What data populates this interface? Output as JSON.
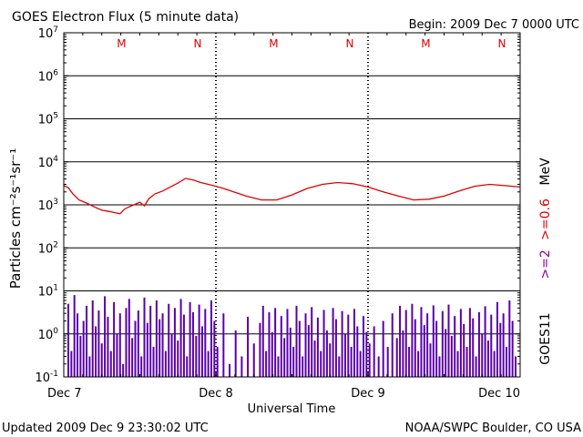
{
  "header": {
    "title": "GOES Electron Flux (5 minute data)",
    "begin": "Begin: 2009 Dec 7 0000 UTC"
  },
  "footer": {
    "updated": "Updated 2009 Dec  9 23:30:02 UTC",
    "credit": "NOAA/SWPC Boulder, CO USA"
  },
  "colors": {
    "flux_line": "#e00000",
    "hist_bars": "#5a00aa",
    "threshold": "#000000",
    "marker": "#e00000",
    "energy_label_red": "#e00000",
    "energy_label_purple": "#8b008b"
  },
  "chart_data": {
    "type": "line",
    "title": "GOES Electron Flux (5 minute data)",
    "xlabel": "Universal Time",
    "ylabel": "Particles cm⁻²s⁻¹sr⁻¹",
    "y_scale": "log",
    "ylim": [
      0.1,
      10000000
    ],
    "y_ticks": [
      {
        "value": 0.1,
        "base": "10",
        "exp": "-1"
      },
      {
        "value": 1,
        "base": "10",
        "exp": "0"
      },
      {
        "value": 10,
        "base": "10",
        "exp": "1"
      },
      {
        "value": 100,
        "base": "10",
        "exp": "2"
      },
      {
        "value": 1000,
        "base": "10",
        "exp": "3"
      },
      {
        "value": 10000,
        "base": "10",
        "exp": "4"
      },
      {
        "value": 100000,
        "base": "10",
        "exp": "5"
      },
      {
        "value": 1000000,
        "base": "10",
        "exp": "6"
      },
      {
        "value": 10000000,
        "base": "10",
        "exp": "7"
      }
    ],
    "x_unit": "day since 2009 Dec 7 0000 UTC",
    "xlim": [
      0,
      3
    ],
    "x_ticks": [
      {
        "value": 0,
        "label": "Dec 7"
      },
      {
        "value": 1,
        "label": "Dec 8"
      },
      {
        "value": 2,
        "label": "Dec 9"
      },
      {
        "value": 3,
        "label": "Dec 10"
      }
    ],
    "day_markers": [
      {
        "x": 0.38,
        "label": "M"
      },
      {
        "x": 0.88,
        "label": "N"
      },
      {
        "x": 1.38,
        "label": "M"
      },
      {
        "x": 1.88,
        "label": "N"
      },
      {
        "x": 2.38,
        "label": "M"
      },
      {
        "x": 2.88,
        "label": "N"
      }
    ],
    "threshold": {
      "value": 1000,
      "style": "dashed"
    },
    "series": [
      {
        "name": ">=2 >=0.6 MeV",
        "x": [
          0.0,
          0.03,
          0.06,
          0.1,
          0.15,
          0.2,
          0.25,
          0.3,
          0.34,
          0.37,
          0.4,
          0.43,
          0.46,
          0.5,
          0.53,
          0.56,
          0.6,
          0.65,
          0.7,
          0.75,
          0.8,
          0.85,
          0.9,
          0.95,
          1.0,
          1.05,
          1.1,
          1.2,
          1.3,
          1.4,
          1.5,
          1.6,
          1.7,
          1.8,
          1.9,
          2.0,
          2.1,
          2.2,
          2.3,
          2.4,
          2.5,
          2.6,
          2.7,
          2.8,
          2.9,
          3.0
        ],
        "y": [
          2800,
          2500,
          1800,
          1300,
          1100,
          900,
          750,
          700,
          650,
          620,
          800,
          900,
          1000,
          1150,
          950,
          1400,
          1800,
          2100,
          2600,
          3200,
          4100,
          3800,
          3300,
          3000,
          2700,
          2400,
          2100,
          1600,
          1300,
          1300,
          1700,
          2400,
          3000,
          3300,
          3100,
          2600,
          2000,
          1600,
          1300,
          1350,
          1600,
          2100,
          2700,
          3000,
          2800,
          2600
        ]
      }
    ],
    "histogram": {
      "name": "GOES11",
      "bars": [
        [
          0.03,
          5.0
        ],
        [
          0.05,
          0.4
        ],
        [
          0.07,
          8.0
        ],
        [
          0.09,
          3.0
        ],
        [
          0.11,
          0.9
        ],
        [
          0.13,
          2.0
        ],
        [
          0.15,
          4.5
        ],
        [
          0.17,
          0.3
        ],
        [
          0.19,
          6.0
        ],
        [
          0.21,
          1.5
        ],
        [
          0.23,
          3.5
        ],
        [
          0.25,
          0.6
        ],
        [
          0.27,
          7.5
        ],
        [
          0.29,
          2.5
        ],
        [
          0.31,
          0.4
        ],
        [
          0.33,
          5.5
        ],
        [
          0.35,
          1.0
        ],
        [
          0.37,
          3.0
        ],
        [
          0.39,
          0.2
        ],
        [
          0.41,
          4.0
        ],
        [
          0.43,
          6.5
        ],
        [
          0.45,
          0.8
        ],
        [
          0.47,
          2.0
        ],
        [
          0.49,
          3.5
        ],
        [
          0.51,
          0.3
        ],
        [
          0.53,
          7.0
        ],
        [
          0.55,
          1.8
        ],
        [
          0.57,
          4.5
        ],
        [
          0.59,
          0.5
        ],
        [
          0.61,
          6.0
        ],
        [
          0.63,
          2.2
        ],
        [
          0.65,
          3.0
        ],
        [
          0.67,
          0.4
        ],
        [
          0.69,
          5.0
        ],
        [
          0.71,
          1.0
        ],
        [
          0.73,
          4.0
        ],
        [
          0.75,
          0.7
        ],
        [
          0.77,
          6.5
        ],
        [
          0.79,
          2.8
        ],
        [
          0.81,
          0.3
        ],
        [
          0.83,
          5.5
        ],
        [
          0.85,
          3.2
        ],
        [
          0.87,
          0.9
        ],
        [
          0.89,
          4.8
        ],
        [
          0.91,
          1.5
        ],
        [
          0.93,
          3.8
        ],
        [
          0.95,
          0.4
        ],
        [
          0.97,
          6.0
        ],
        [
          0.99,
          2.0
        ],
        [
          1.01,
          0.5
        ],
        [
          1.05,
          3.0
        ],
        [
          1.09,
          0.2
        ],
        [
          1.13,
          1.2
        ],
        [
          1.17,
          0.3
        ],
        [
          1.21,
          2.5
        ],
        [
          1.25,
          0.6
        ],
        [
          1.29,
          1.8
        ],
        [
          1.31,
          4.5
        ],
        [
          1.33,
          0.4
        ],
        [
          1.35,
          3.2
        ],
        [
          1.37,
          1.1
        ],
        [
          1.39,
          4.0
        ],
        [
          1.41,
          0.3
        ],
        [
          1.43,
          2.6
        ],
        [
          1.45,
          0.8
        ],
        [
          1.47,
          3.8
        ],
        [
          1.49,
          1.4
        ],
        [
          1.51,
          0.5
        ],
        [
          1.53,
          4.5
        ],
        [
          1.55,
          2.0
        ],
        [
          1.57,
          0.3
        ],
        [
          1.59,
          3.0
        ],
        [
          1.61,
          1.6
        ],
        [
          1.63,
          4.2
        ],
        [
          1.65,
          0.7
        ],
        [
          1.67,
          2.4
        ],
        [
          1.69,
          0.4
        ],
        [
          1.71,
          3.6
        ],
        [
          1.73,
          1.2
        ],
        [
          1.75,
          0.6
        ],
        [
          1.77,
          4.0
        ],
        [
          1.79,
          2.2
        ],
        [
          1.81,
          0.3
        ],
        [
          1.83,
          3.4
        ],
        [
          1.85,
          1.0
        ],
        [
          1.87,
          2.8
        ],
        [
          1.89,
          0.5
        ],
        [
          1.91,
          3.8
        ],
        [
          1.93,
          1.5
        ],
        [
          1.95,
          0.4
        ],
        [
          1.97,
          2.6
        ],
        [
          1.99,
          1.1
        ],
        [
          2.01,
          0.6
        ],
        [
          2.04,
          1.5
        ],
        [
          2.07,
          0.3
        ],
        [
          2.1,
          2.0
        ],
        [
          2.13,
          0.5
        ],
        [
          2.16,
          3.0
        ],
        [
          2.19,
          0.8
        ],
        [
          2.21,
          4.5
        ],
        [
          2.23,
          1.2
        ],
        [
          2.25,
          3.6
        ],
        [
          2.27,
          0.5
        ],
        [
          2.29,
          5.0
        ],
        [
          2.31,
          2.2
        ],
        [
          2.33,
          0.4
        ],
        [
          2.35,
          4.2
        ],
        [
          2.37,
          1.6
        ],
        [
          2.39,
          3.0
        ],
        [
          2.41,
          0.6
        ],
        [
          2.43,
          4.6
        ],
        [
          2.45,
          2.0
        ],
        [
          2.47,
          0.3
        ],
        [
          2.49,
          3.4
        ],
        [
          2.51,
          1.3
        ],
        [
          2.53,
          4.8
        ],
        [
          2.55,
          0.9
        ],
        [
          2.57,
          2.6
        ],
        [
          2.59,
          0.4
        ],
        [
          2.61,
          3.8
        ],
        [
          2.63,
          1.7
        ],
        [
          2.65,
          0.5
        ],
        [
          2.67,
          4.0
        ],
        [
          2.69,
          2.3
        ],
        [
          2.71,
          0.3
        ],
        [
          2.73,
          3.2
        ],
        [
          2.75,
          1.0
        ],
        [
          2.77,
          4.4
        ],
        [
          2.79,
          0.7
        ],
        [
          2.81,
          2.8
        ],
        [
          2.83,
          0.4
        ],
        [
          2.85,
          5.5
        ],
        [
          2.87,
          1.8
        ],
        [
          2.89,
          3.0
        ],
        [
          2.91,
          0.5
        ],
        [
          2.93,
          6.0
        ],
        [
          2.95,
          2.0
        ],
        [
          2.97,
          0.3
        ]
      ]
    },
    "right_labels": {
      "energy_high": ">=2",
      "energy_low": ">=0.6",
      "energy_unit": "MeV",
      "satellite": "GOES11"
    }
  }
}
